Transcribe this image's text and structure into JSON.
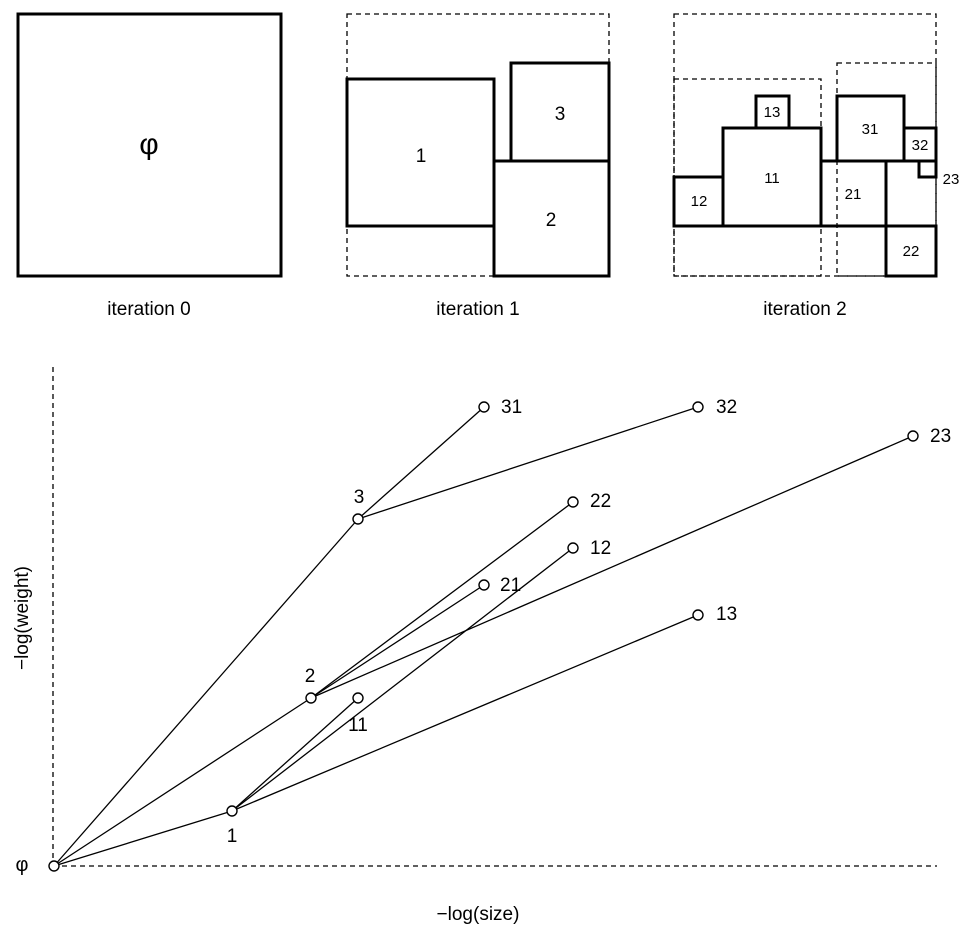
{
  "top_panels": {
    "iteration_0": {
      "caption": "iteration 0",
      "root_label": "φ"
    },
    "iteration_1": {
      "caption": "iteration 1",
      "boxes": [
        "1",
        "2",
        "3"
      ]
    },
    "iteration_2": {
      "caption": "iteration 2",
      "boxes": [
        "11",
        "12",
        "13",
        "21",
        "22",
        "23",
        "31",
        "32"
      ]
    }
  },
  "tree_plot": {
    "xlabel": "−log(size)",
    "ylabel": "−log(weight)",
    "root_label": "φ",
    "nodes": [
      {
        "label": "1"
      },
      {
        "label": "2"
      },
      {
        "label": "3"
      },
      {
        "label": "11"
      },
      {
        "label": "12"
      },
      {
        "label": "13"
      },
      {
        "label": "21"
      },
      {
        "label": "22"
      },
      {
        "label": "23"
      },
      {
        "label": "31"
      },
      {
        "label": "32"
      }
    ],
    "edges": [
      [
        "φ",
        "1"
      ],
      [
        "φ",
        "2"
      ],
      [
        "φ",
        "3"
      ],
      [
        "1",
        "11"
      ],
      [
        "1",
        "12"
      ],
      [
        "1",
        "13"
      ],
      [
        "2",
        "21"
      ],
      [
        "2",
        "22"
      ],
      [
        "2",
        "23"
      ],
      [
        "3",
        "31"
      ],
      [
        "3",
        "32"
      ]
    ]
  }
}
